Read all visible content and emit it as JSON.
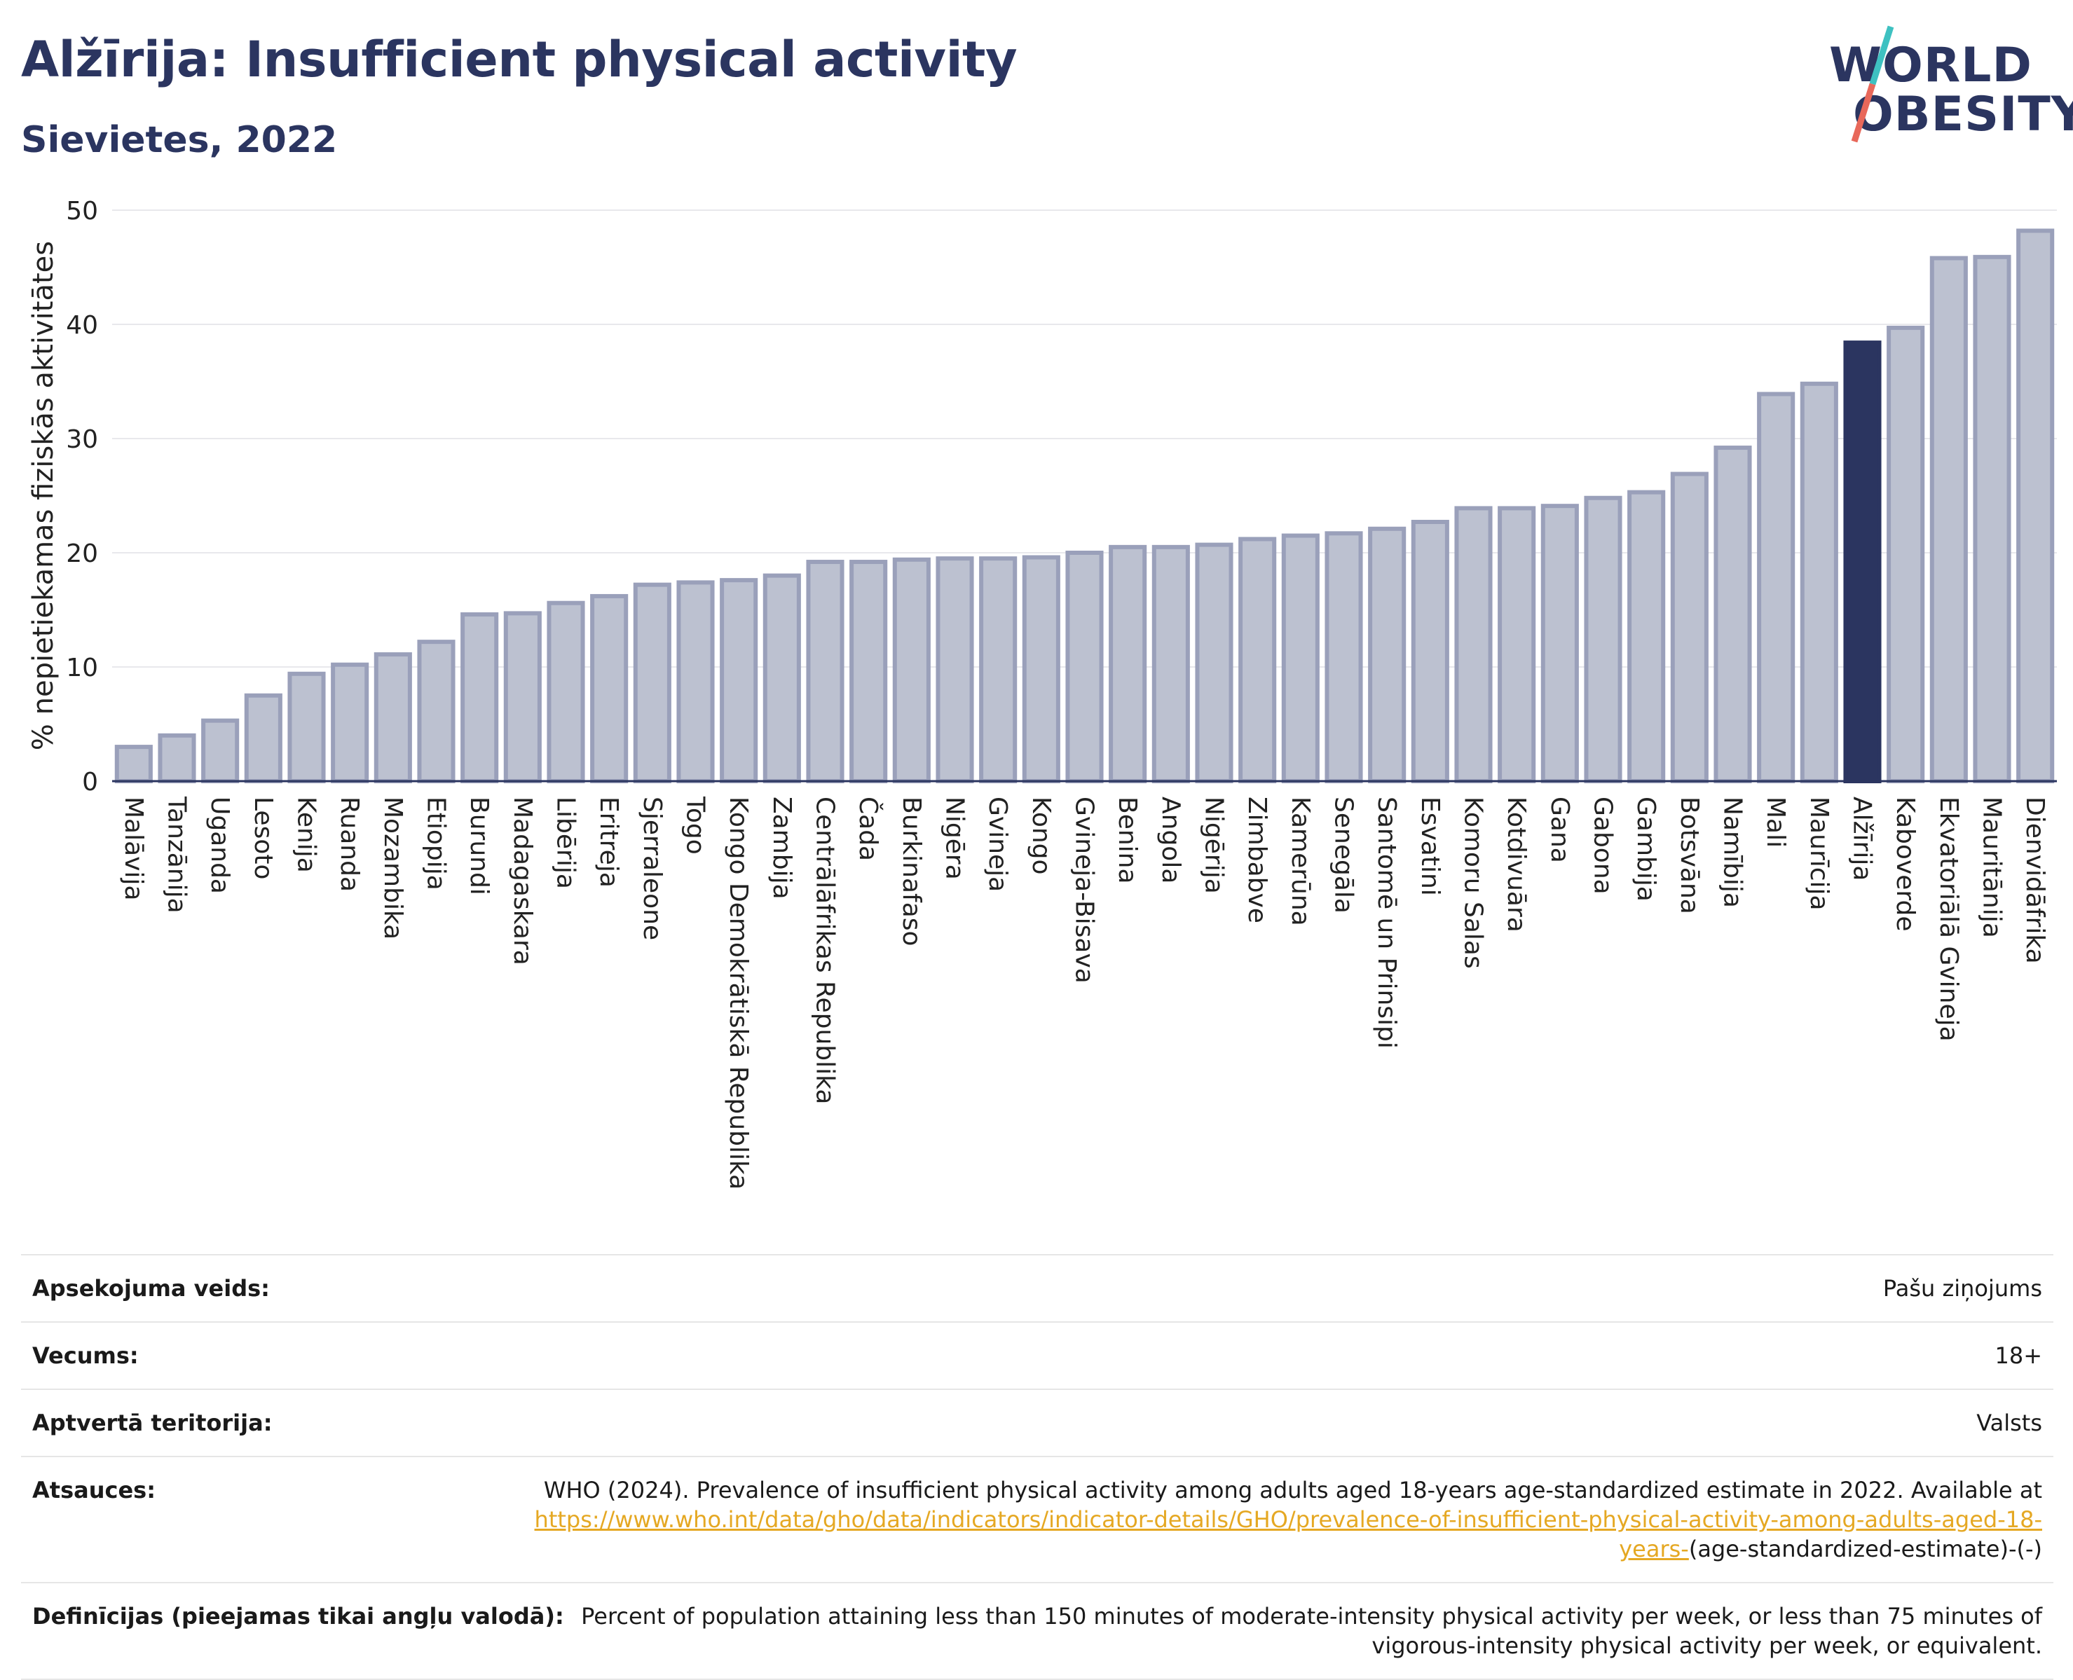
{
  "header": {
    "title": "Alžīrija: Insufficient physical activity",
    "subtitle": "Sievietes, 2022"
  },
  "logo": {
    "line1": "WORLD",
    "line2": "OBESITY"
  },
  "colors": {
    "bar": "#bcc1d0",
    "bar_stroke": "#9aa0ba",
    "highlight": "#2b3560",
    "text": "#2b3560",
    "link": "#e5a823",
    "logo_slash_top": "#3ec1c1",
    "logo_slash_bottom": "#e8685a"
  },
  "chart_data": {
    "type": "bar",
    "ylabel": "% nepietiekamas fiziskās aktivitātes",
    "ylim": [
      0,
      50
    ],
    "yticks": [
      0,
      10,
      20,
      30,
      40,
      50
    ],
    "grid": true,
    "highlight": "Alžīrija",
    "categories": [
      "Malāvija",
      "Tanzānija",
      "Uganda",
      "Lesoto",
      "Kenija",
      "Ruanda",
      "Mozambika",
      "Etiopija",
      "Burundi",
      "Madagaskara",
      "Libērija",
      "Eritreja",
      "Sjerraleone",
      "Togo",
      "Kongo Demokrātiskā Republika",
      "Zambija",
      "Centrālāfrikas Republika",
      "Čada",
      "Burkinafaso",
      "Nigēra",
      "Gvineja",
      "Kongo",
      "Gvineja-Bisava",
      "Benina",
      "Angola",
      "Nigērija",
      "Zimbabve",
      "Kamerūna",
      "Senegāla",
      "Santomē un Prinsipi",
      "Esvatini",
      "Komoru Salas",
      "Kotdivuāra",
      "Gana",
      "Gabona",
      "Gambija",
      "Botsvāna",
      "Namībija",
      "Mali",
      "Maurīcija",
      "Alžīrija",
      "Kaboverde",
      "Ekvatoriālā Gvineja",
      "Mauritānija",
      "Dienvidāfrika"
    ],
    "values": [
      3.0,
      4.0,
      5.3,
      7.5,
      9.4,
      10.2,
      11.1,
      12.2,
      14.6,
      14.7,
      15.6,
      16.2,
      17.2,
      17.4,
      17.6,
      18.0,
      19.2,
      19.2,
      19.4,
      19.5,
      19.5,
      19.6,
      20.0,
      20.5,
      20.5,
      20.7,
      21.2,
      21.5,
      21.7,
      22.1,
      22.7,
      23.9,
      23.9,
      24.1,
      24.8,
      25.3,
      26.9,
      29.2,
      33.9,
      34.8,
      38.4,
      39.7,
      45.8,
      45.9,
      48.2
    ]
  },
  "info": {
    "rows": [
      {
        "label": "Apsekojuma veids:",
        "value": "Pašu ziņojums"
      },
      {
        "label": "Vecums:",
        "value": "18+"
      },
      {
        "label": "Aptvertā teritorija:",
        "value": "Valsts"
      }
    ],
    "references": {
      "label": "Atsauces:",
      "text": "WHO (2024). Prevalence of insufficient physical activity among adults aged 18-years age-standardized estimate in 2022. Available at",
      "link": "https://www.who.int/data/gho/data/indicators/indicator-details/GHO/prevalence-of-insufficient-physical-activity-among-adults-aged-18-years-",
      "suffix": "(age-standardized-estimate)-(-)"
    },
    "definitions": {
      "label": "Definīcijas (pieejamas tikai angļu valodā):",
      "value": "Percent of population attaining less than 150 minutes of moderate-intensity physical activity per week, or less than 75 minutes of vigorous-intensity physical activity per week, or equivalent."
    }
  }
}
